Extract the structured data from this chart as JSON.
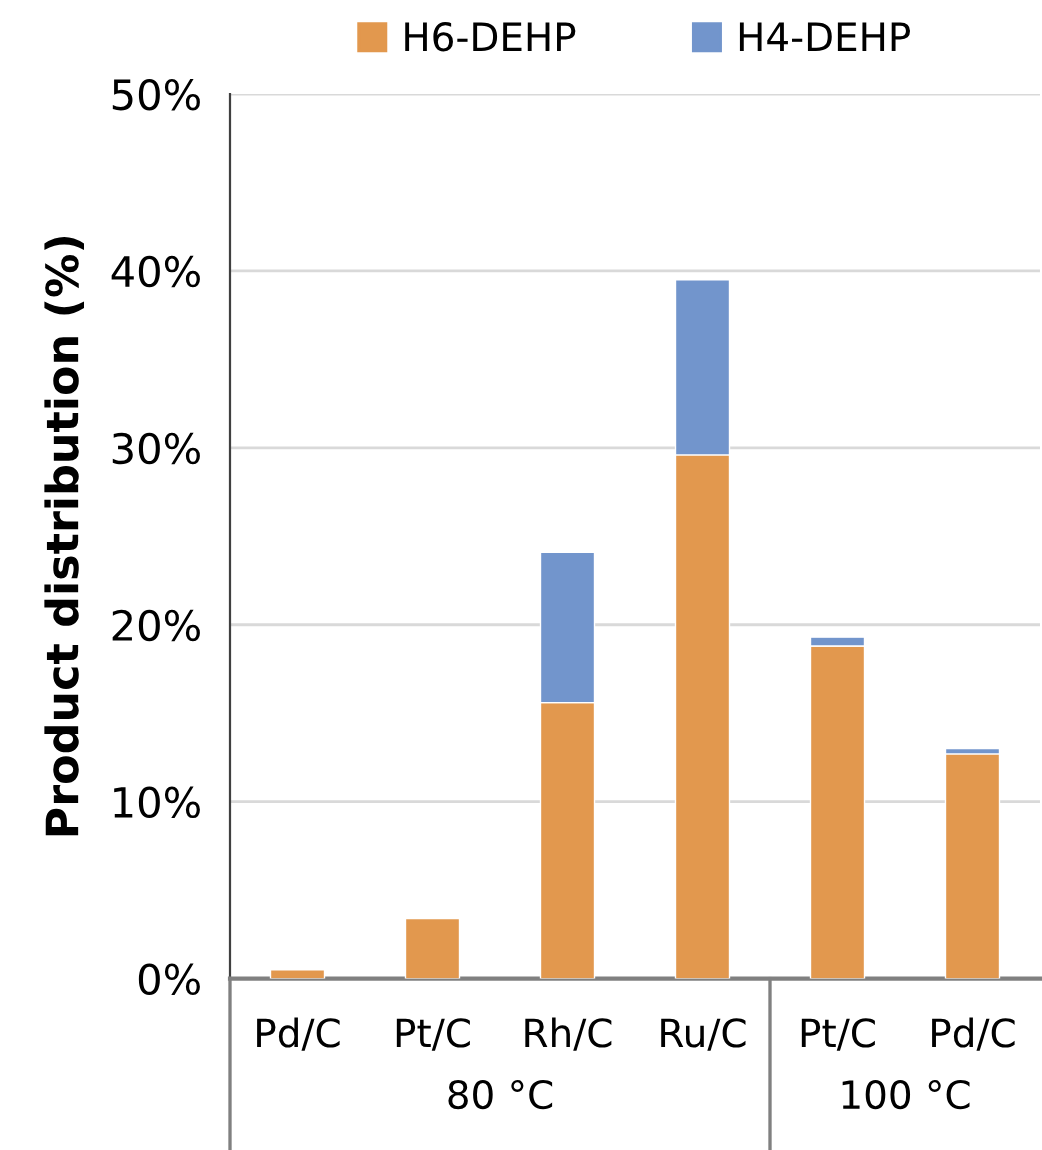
{
  "chart_data": {
    "type": "bar",
    "stacked": true,
    "ylabel": "Product distribution (%)",
    "categories": [
      "Pd/C",
      "Pt/C",
      "Rh/C",
      "Ru/C",
      "Pt/C",
      "Pd/C"
    ],
    "series": [
      {
        "name": "H6-DEHP",
        "color": "#e2984e",
        "values": [
          0.5,
          3.4,
          15.6,
          29.6,
          18.8,
          12.7
        ]
      },
      {
        "name": "H4-DEHP",
        "color": "#7295cc",
        "values": [
          null,
          null,
          8.5,
          9.9,
          0.5,
          0.3
        ]
      }
    ],
    "ylim": [
      0,
      50
    ],
    "yticks": [
      {
        "value": 0,
        "label": "0%"
      },
      {
        "value": 10,
        "label": "10%"
      },
      {
        "value": 20,
        "label": "20%"
      },
      {
        "value": 30,
        "label": "30%"
      },
      {
        "value": 40,
        "label": "40%"
      },
      {
        "value": 50,
        "label": "50%"
      }
    ],
    "grid": "y",
    "legend": "top",
    "annotations": [
      "80 °C",
      "100 °C"
    ]
  }
}
